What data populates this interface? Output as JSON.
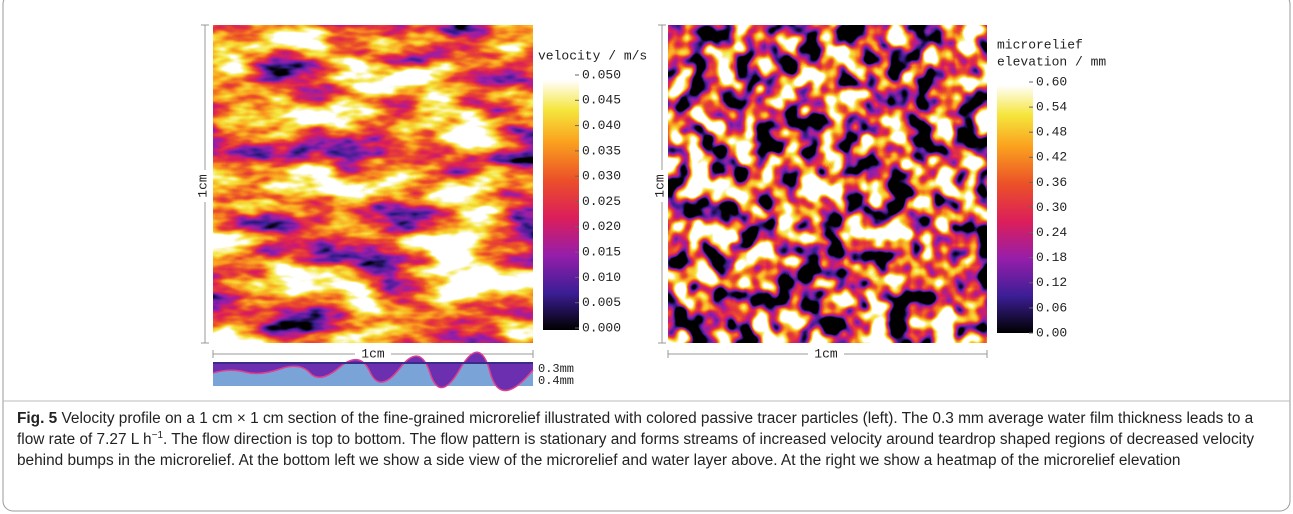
{
  "figure": {
    "left": {
      "colorbar_title": "velocity / m/s",
      "ticks": [
        "0.050",
        "0.045",
        "0.040",
        "0.035",
        "0.030",
        "0.025",
        "0.020",
        "0.015",
        "0.010",
        "0.005",
        "0.000"
      ],
      "scale_y": "1cm",
      "scale_x": "1cm",
      "side_labels": [
        "0.3mm",
        "0.4mm"
      ]
    },
    "right": {
      "colorbar_title": [
        "microrelief",
        "elevation / mm"
      ],
      "ticks": [
        "0.60",
        "0.54",
        "0.48",
        "0.42",
        "0.36",
        "0.30",
        "0.24",
        "0.18",
        "0.12",
        "0.06",
        "0.00"
      ],
      "scale_y": "1cm",
      "scale_x": "1cm"
    }
  },
  "caption": {
    "label": "Fig. 5",
    "text": " Velocity profile on a 1 cm × 1 cm section of the fine-grained microrelief illustrated with colored passive tracer particles (left). The 0.3 mm average water film thickness leads to a flow rate of 7.27 L h",
    "superscript": "−1",
    "text_end": ". The flow direction is top to bottom. The flow pattern is stationary and forms streams of increased velocity around teardrop shaped regions of decreased velocity behind bumps in the microrelief. At the bottom left we show a side view of the microrelief and water layer above. At the right we show a heatmap of the microrelief elevation"
  }
}
